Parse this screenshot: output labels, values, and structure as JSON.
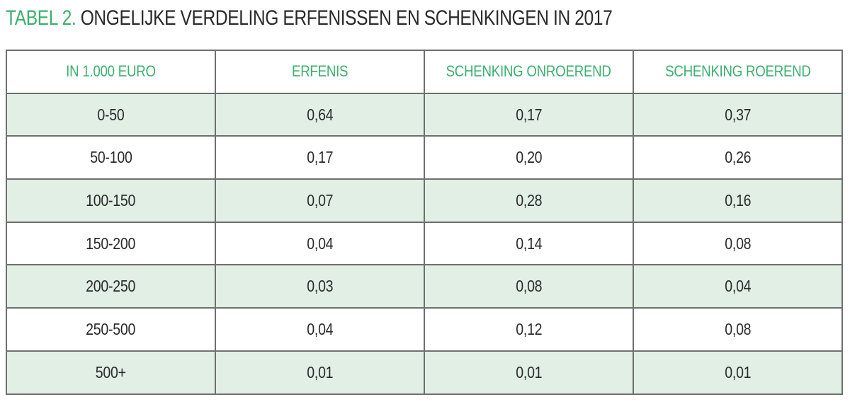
{
  "title": {
    "prefix": "TABEL 2.",
    "text": "ONGELIJKE VERDELING ERFENISSEN EN SCHENKINGEN IN 2017"
  },
  "colors": {
    "accent_green": "#3bb06e",
    "row_fill_green": "#e1efe5",
    "border_gray": "#6e6f71",
    "text_dark": "#2a2a2c",
    "background": "#ffffff"
  },
  "table": {
    "columns": [
      "IN 1.000 EURO",
      "ERFENIS",
      "SCHENKING ONROEREND",
      "SCHENKING ROEREND"
    ],
    "rows": [
      [
        "0-50",
        "0,64",
        "0,17",
        "0,37"
      ],
      [
        "50-100",
        "0,17",
        "0,20",
        "0,26"
      ],
      [
        "100-150",
        "0,07",
        "0,28",
        "0,16"
      ],
      [
        "150-200",
        "0,04",
        "0,14",
        "0,08"
      ],
      [
        "200-250",
        "0,03",
        "0,08",
        "0,04"
      ],
      [
        "250-500",
        "0,04",
        "0,12",
        "0,08"
      ],
      [
        "500+",
        "0,01",
        "0,01",
        "0,01"
      ]
    ]
  },
  "chart_data": {
    "type": "table",
    "title": "TABEL 2. ONGELIJKE VERDELING ERFENISSEN EN SCHENKINGEN IN 2017",
    "unit_label": "IN 1.000 EURO",
    "categories": [
      "0-50",
      "50-100",
      "100-150",
      "150-200",
      "200-250",
      "250-500",
      "500+"
    ],
    "series": [
      {
        "name": "ERFENIS",
        "values": [
          0.64,
          0.17,
          0.07,
          0.04,
          0.03,
          0.04,
          0.01
        ]
      },
      {
        "name": "SCHENKING ONROEREND",
        "values": [
          0.17,
          0.2,
          0.28,
          0.14,
          0.08,
          0.12,
          0.01
        ]
      },
      {
        "name": "SCHENKING ROEREND",
        "values": [
          0.37,
          0.26,
          0.16,
          0.08,
          0.04,
          0.08,
          0.01
        ]
      }
    ]
  }
}
